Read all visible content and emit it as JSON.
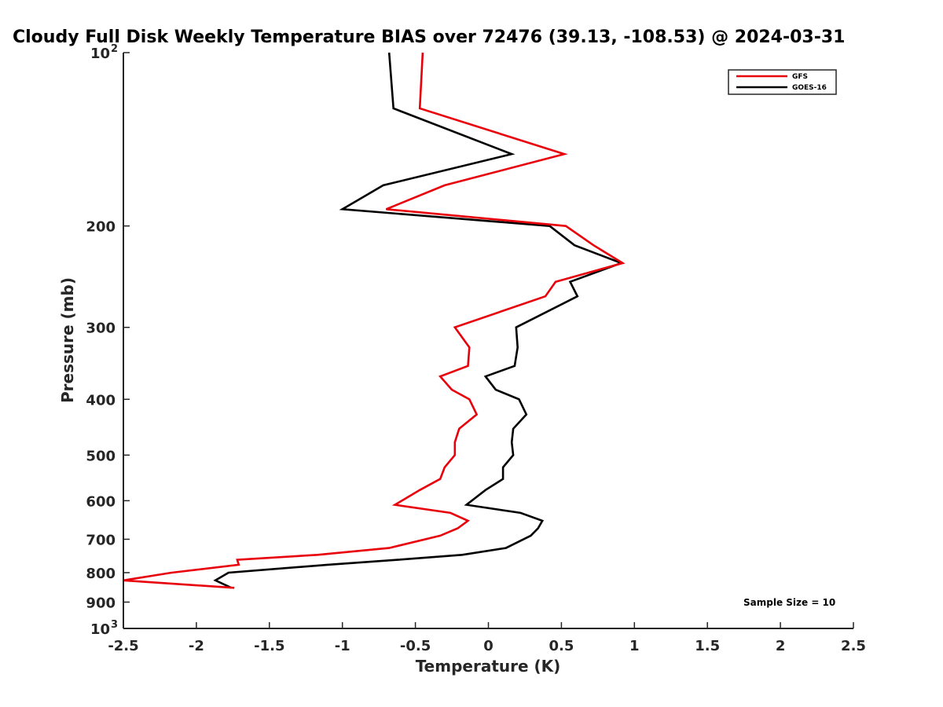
{
  "chart_data": {
    "type": "line",
    "title": "Cloudy Full Disk Weekly Temperature BIAS over 72476 (39.13, -108.53) @ 2024-03-31",
    "xlabel": "Temperature (K)",
    "ylabel": "Pressure (mb)",
    "xlim": [
      -2.5,
      2.5
    ],
    "ylim": [
      100,
      1000
    ],
    "y_scale": "log",
    "y_reversed": true,
    "grid": false,
    "legend_position": "top-right",
    "x_ticks": [
      "-2.5",
      "-2",
      "-1.5",
      "-1",
      "-0.5",
      "0",
      "0.5",
      "1",
      "1.5",
      "2",
      "2.5"
    ],
    "y_ticks": [
      {
        "value": 100,
        "label": "10",
        "sup": "2"
      },
      {
        "value": 200,
        "label": "200"
      },
      {
        "value": 300,
        "label": "300"
      },
      {
        "value": 400,
        "label": "400"
      },
      {
        "value": 500,
        "label": "500"
      },
      {
        "value": 600,
        "label": "600"
      },
      {
        "value": 700,
        "label": "700"
      },
      {
        "value": 800,
        "label": "800"
      },
      {
        "value": 900,
        "label": "900"
      },
      {
        "value": 1000,
        "label": "10",
        "sup": "3"
      }
    ],
    "annotation": "Sample Size = 10",
    "series": [
      {
        "name": "GFS",
        "color": "#e8000b",
        "points": [
          {
            "x": -0.45,
            "p": 100
          },
          {
            "x": -0.47,
            "p": 125
          },
          {
            "x": 0.52,
            "p": 150
          },
          {
            "x": -0.3,
            "p": 170
          },
          {
            "x": -0.7,
            "p": 187
          },
          {
            "x": 0.53,
            "p": 200
          },
          {
            "x": 0.72,
            "p": 216
          },
          {
            "x": 0.92,
            "p": 232
          },
          {
            "x": 0.46,
            "p": 250
          },
          {
            "x": 0.39,
            "p": 265
          },
          {
            "x": -0.23,
            "p": 300
          },
          {
            "x": -0.13,
            "p": 325
          },
          {
            "x": -0.14,
            "p": 350
          },
          {
            "x": -0.33,
            "p": 365
          },
          {
            "x": -0.25,
            "p": 385
          },
          {
            "x": -0.13,
            "p": 400
          },
          {
            "x": -0.08,
            "p": 425
          },
          {
            "x": -0.2,
            "p": 450
          },
          {
            "x": -0.23,
            "p": 475
          },
          {
            "x": -0.23,
            "p": 500
          },
          {
            "x": -0.3,
            "p": 525
          },
          {
            "x": -0.33,
            "p": 550
          },
          {
            "x": -0.47,
            "p": 575
          },
          {
            "x": -0.64,
            "p": 610
          },
          {
            "x": -0.26,
            "p": 630
          },
          {
            "x": -0.14,
            "p": 650
          },
          {
            "x": -0.21,
            "p": 670
          },
          {
            "x": -0.33,
            "p": 690
          },
          {
            "x": -0.68,
            "p": 725
          },
          {
            "x": -1.17,
            "p": 745
          },
          {
            "x": -1.72,
            "p": 760
          },
          {
            "x": -1.71,
            "p": 775
          },
          {
            "x": -2.17,
            "p": 800
          },
          {
            "x": -2.5,
            "p": 825
          },
          {
            "x": -1.74,
            "p": 850
          }
        ]
      },
      {
        "name": "GOES-16",
        "color": "#000000",
        "points": [
          {
            "x": -0.68,
            "p": 100
          },
          {
            "x": -0.65,
            "p": 125
          },
          {
            "x": 0.16,
            "p": 150
          },
          {
            "x": -0.72,
            "p": 170
          },
          {
            "x": -1.0,
            "p": 187
          },
          {
            "x": 0.42,
            "p": 200
          },
          {
            "x": 0.59,
            "p": 216
          },
          {
            "x": 0.91,
            "p": 232
          },
          {
            "x": 0.56,
            "p": 250
          },
          {
            "x": 0.61,
            "p": 265
          },
          {
            "x": 0.19,
            "p": 300
          },
          {
            "x": 0.2,
            "p": 325
          },
          {
            "x": 0.18,
            "p": 350
          },
          {
            "x": -0.02,
            "p": 365
          },
          {
            "x": 0.05,
            "p": 385
          },
          {
            "x": 0.21,
            "p": 400
          },
          {
            "x": 0.26,
            "p": 425
          },
          {
            "x": 0.17,
            "p": 450
          },
          {
            "x": 0.16,
            "p": 475
          },
          {
            "x": 0.17,
            "p": 500
          },
          {
            "x": 0.1,
            "p": 525
          },
          {
            "x": 0.1,
            "p": 550
          },
          {
            "x": -0.02,
            "p": 575
          },
          {
            "x": -0.15,
            "p": 610
          },
          {
            "x": 0.22,
            "p": 630
          },
          {
            "x": 0.37,
            "p": 650
          },
          {
            "x": 0.34,
            "p": 670
          },
          {
            "x": 0.29,
            "p": 690
          },
          {
            "x": 0.12,
            "p": 725
          },
          {
            "x": -0.18,
            "p": 745
          },
          {
            "x": -0.62,
            "p": 760
          },
          {
            "x": -1.1,
            "p": 775
          },
          {
            "x": -1.78,
            "p": 800
          },
          {
            "x": -1.87,
            "p": 825
          },
          {
            "x": -1.76,
            "p": 850
          }
        ]
      }
    ]
  }
}
